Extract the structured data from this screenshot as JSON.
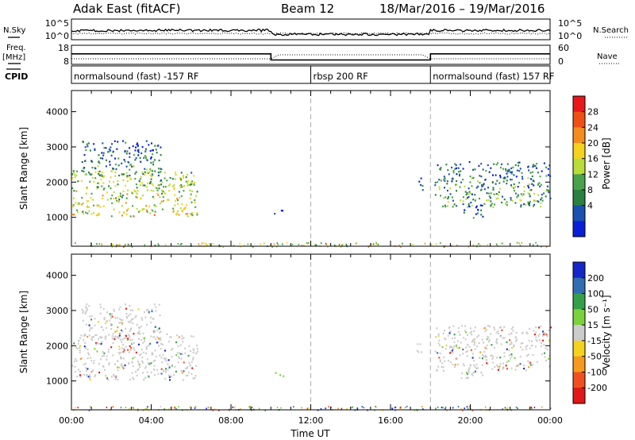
{
  "header": {
    "station": "Adak East (fitACF)",
    "beam": "Beam 12",
    "date_range": "18/Mar/2016 – 19/Mar/2016"
  },
  "noise_panel": {
    "left_label": "N.Sky",
    "right_label": "N.Search",
    "left_ticks": [
      "10^5",
      "10^0"
    ],
    "right_ticks": [
      "10^5",
      "10^0"
    ]
  },
  "freq_panel": {
    "left_label_line1": "Freq.",
    "left_label_line2": "[MHz]",
    "right_label": "Nave",
    "left_ticks": [
      "18",
      "8"
    ],
    "right_ticks": [
      "60",
      "0"
    ]
  },
  "cpid": {
    "label": "CPID",
    "segments": [
      {
        "start_hour": 0,
        "end_hour": 12,
        "text": "normalsound (fast) -157 RF"
      },
      {
        "start_hour": 12,
        "end_hour": 18,
        "text": "rbsp 200 RF"
      },
      {
        "start_hour": 18,
        "end_hour": 24,
        "text": "normalsound (fast) 157 RF"
      }
    ]
  },
  "power_colorbar": {
    "label": "Power [dB]",
    "ticks": [
      "28",
      "24",
      "20",
      "16",
      "12",
      "8",
      "4"
    ],
    "colors": [
      "#e8171a",
      "#f04f14",
      "#f58c1e",
      "#f5d21e",
      "#b8dc3a",
      "#4aa34a",
      "#2a8040",
      "#1a50b0",
      "#0a1ed8"
    ]
  },
  "velocity_colorbar": {
    "label": "Velocity [m s⁻¹]",
    "ticks": [
      "200",
      "100",
      "50",
      "15",
      "-15",
      "-50",
      "-100",
      "-200"
    ],
    "colors": [
      "#1428c8",
      "#2f6eb0",
      "#35a04a",
      "#7ad23c",
      "#cccccc",
      "#f5d21e",
      "#f59a1e",
      "#f0501e",
      "#e01818"
    ]
  },
  "chart_data": {
    "type": "heatmap",
    "x_axis": {
      "label": "Time UT",
      "range_hours": [
        0,
        24
      ],
      "ticks": [
        {
          "hour": 0,
          "label": "00:00"
        },
        {
          "hour": 4,
          "label": "04:00"
        },
        {
          "hour": 8,
          "label": "08:00"
        },
        {
          "hour": 12,
          "label": "12:00"
        },
        {
          "hour": 16,
          "label": "16:00"
        },
        {
          "hour": 20,
          "label": "20:00"
        },
        {
          "hour": 24,
          "label": "00:00"
        }
      ]
    },
    "y_axis": {
      "label": "Slant Range [km]",
      "range_km": [
        180,
        4600
      ],
      "ticks": [
        1000,
        2000,
        3000,
        4000
      ]
    },
    "frequency_mhz": [
      {
        "start_hour": 0,
        "end_hour": 10,
        "value": 13.5
      },
      {
        "start_hour": 10,
        "end_hour": 18,
        "value": 10.3
      },
      {
        "start_hour": 18,
        "end_hour": 24,
        "value": 13.5
      }
    ],
    "scatter_bands": [
      {
        "name": "",
        "t0": 0,
        "t1": 6.3,
        "r0": 1050,
        "r1": 2350,
        "power_db": 20,
        "velocity": -5
      },
      {
        "name": "",
        "t0": 0.5,
        "t1": 4.5,
        "r0": 2200,
        "r1": 3200,
        "power_db": 10,
        "velocity": 10
      },
      {
        "name": "",
        "t0": 10.1,
        "t1": 10.6,
        "r0": 1100,
        "r1": 1250,
        "power_db": 8,
        "velocity": 60
      },
      {
        "name": "",
        "t0": 18.2,
        "t1": 24,
        "r0": 1300,
        "r1": 2600,
        "power_db": 12,
        "velocity": -5
      },
      {
        "name": "",
        "t0": 19.5,
        "t1": 20.6,
        "r0": 1000,
        "r1": 1400,
        "power_db": 6,
        "velocity": 0
      },
      {
        "name": "",
        "t0": 17.3,
        "t1": 17.6,
        "r0": 1800,
        "r1": 2200,
        "power_db": 10,
        "velocity": 20
      }
    ]
  }
}
